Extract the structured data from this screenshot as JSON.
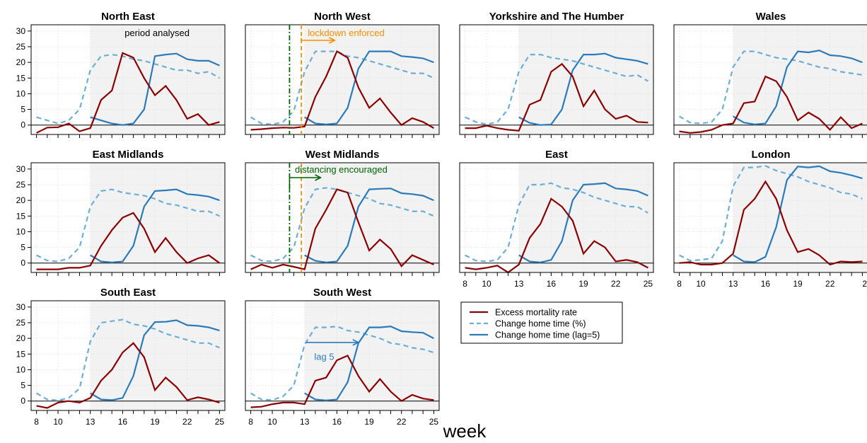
{
  "chart_data": {
    "type": "line",
    "xlabel": "week",
    "x": [
      8,
      9,
      10,
      11,
      12,
      13,
      14,
      15,
      16,
      17,
      18,
      19,
      20,
      21,
      22,
      23,
      24,
      25
    ],
    "x_ticks": [
      8,
      10,
      13,
      16,
      19,
      22,
      25
    ],
    "y_ticks": [
      0,
      5,
      10,
      15,
      20,
      25,
      30
    ],
    "ylim": [
      -3,
      32
    ],
    "xlim": [
      7.5,
      25.5
    ],
    "analysed_period": [
      13,
      25.5
    ],
    "lag_x": [
      13,
      14,
      15,
      16,
      17,
      18,
      19,
      20,
      21,
      22,
      23,
      24,
      25
    ],
    "colors": {
      "mortality": "#8b0000",
      "home": "#6baed6",
      "lag": "#2b7bba",
      "lockdown": "#ff8c00",
      "distancing": "#006400",
      "shade": "#f2f2f2"
    },
    "legend": {
      "items": [
        {
          "label": "Excess mortality rate",
          "key": "mortality",
          "dash": false
        },
        {
          "label": "Change home time (%)",
          "key": "home",
          "dash": true
        },
        {
          "label": "Change home time (lag=5)",
          "key": "lag",
          "dash": false
        }
      ]
    },
    "annotations": {
      "period": "period analysed",
      "lockdown": "lockdown enforced",
      "distancing": "distancing encouraged",
      "lag": "lag 5",
      "lockdown_week": 12.7,
      "distancing_week": 11.6
    },
    "panels": [
      {
        "title": "North East",
        "mortality": [
          -2.5,
          -0.8,
          -0.7,
          0.5,
          -2,
          -1,
          8,
          11,
          23,
          21.5,
          15,
          9.5,
          12.5,
          8,
          2,
          3.5,
          0,
          1
        ],
        "home": [
          2.5,
          1.5,
          0.5,
          1.5,
          5,
          17.5,
          22,
          22.5,
          22,
          21,
          20.5,
          19.5,
          18.5,
          17.5,
          17.5,
          16.5,
          17,
          15
        ],
        "lag": [
          2.5,
          1.5,
          0.5,
          0,
          0.5,
          5,
          22,
          22.5,
          22.8,
          21,
          20.5,
          20.5,
          19
        ]
      },
      {
        "title": "North West",
        "mortality": [
          -1.5,
          -1.3,
          -1,
          -0.8,
          -0.9,
          -0.5,
          9,
          15.5,
          23.5,
          21.5,
          12,
          5.5,
          8.5,
          4,
          0,
          2.2,
          1,
          -1
        ],
        "home": [
          2.5,
          0.5,
          0.2,
          1,
          4.5,
          17,
          23.5,
          23.5,
          23.5,
          22,
          21.5,
          20.5,
          19.5,
          18.5,
          17.5,
          16.5,
          16.5,
          15
        ],
        "lag": [
          2.5,
          0.5,
          0.2,
          0.5,
          5.5,
          18,
          23.5,
          23.5,
          23.5,
          22,
          21.7,
          21.3,
          20
        ]
      },
      {
        "title": "Yorkshire and The Humber",
        "mortality": [
          -1,
          -1,
          -0.2,
          -1,
          -1.5,
          -1.8,
          6.5,
          8,
          17,
          19.5,
          15.5,
          6,
          11,
          5,
          2,
          3,
          1,
          0.8
        ],
        "home": [
          2.5,
          1,
          0.2,
          1,
          5,
          17,
          22.5,
          22.5,
          21.5,
          21,
          20.5,
          19.5,
          18.5,
          17.5,
          16.5,
          15.5,
          16,
          14
        ],
        "lag": [
          2.5,
          0.7,
          0,
          0.2,
          5,
          17.5,
          22.5,
          22.5,
          22.8,
          21.5,
          21,
          20.5,
          19.5
        ]
      },
      {
        "title": "Wales",
        "mortality": [
          -2,
          -2.5,
          -2.2,
          -1.5,
          0,
          0.5,
          7,
          7.5,
          15.5,
          14,
          9,
          1.5,
          4,
          2,
          -1.5,
          2.5,
          -1,
          0.5
        ],
        "home": [
          2.8,
          0.8,
          0.5,
          1,
          5,
          18.5,
          23.5,
          23.5,
          22.5,
          21.5,
          21,
          20.5,
          19.5,
          18.5,
          18,
          17,
          16.5,
          16
        ],
        "lag": [
          2.8,
          0.8,
          0.2,
          0.5,
          6,
          18.5,
          23.5,
          23.2,
          23.8,
          22.3,
          22,
          21.3,
          20
        ]
      },
      {
        "title": "East Midlands",
        "mortality": [
          -2,
          -2,
          -2,
          -1.5,
          -1.5,
          -0.8,
          5.5,
          10.5,
          14.5,
          16,
          11,
          3.5,
          8,
          3.5,
          0,
          1.5,
          2.5,
          0
        ],
        "home": [
          2.5,
          0.8,
          0.5,
          1.5,
          5,
          18,
          23,
          23.5,
          22.5,
          22,
          21.5,
          20.5,
          19,
          18.5,
          17.5,
          16.5,
          16.5,
          15
        ],
        "lag": [
          2.5,
          0.5,
          0.2,
          0.5,
          5.5,
          18,
          23,
          23.2,
          23.5,
          22,
          21.7,
          21.2,
          20
        ]
      },
      {
        "title": "West Midlands",
        "mortality": [
          -2,
          -0.5,
          -1.5,
          -0.5,
          -1.2,
          -2,
          11,
          17,
          23.5,
          22.5,
          13,
          4,
          7.5,
          4.5,
          -1,
          2.5,
          1,
          -0.5
        ],
        "home": [
          2.5,
          0.8,
          0.5,
          1.5,
          5,
          17.5,
          23.5,
          24,
          23.5,
          22.5,
          21.5,
          20.5,
          19,
          18.5,
          17.5,
          16.5,
          16.5,
          15
        ],
        "lag": [
          2.5,
          0.7,
          0.2,
          0.5,
          5.5,
          18,
          23.5,
          23.7,
          23.8,
          22.3,
          22,
          21.5,
          20
        ]
      },
      {
        "title": "East",
        "mortality": [
          -1.5,
          -2,
          -1.5,
          -0.8,
          -3,
          -0.5,
          8,
          12.5,
          20.5,
          18,
          13.5,
          3,
          7,
          5,
          0.5,
          1,
          0.3,
          -1.5
        ],
        "home": [
          2.5,
          0.8,
          0.5,
          1,
          5,
          18.5,
          25,
          25,
          25.5,
          24,
          23.5,
          22.5,
          21,
          20,
          19,
          18,
          18,
          16
        ],
        "lag": [
          2.5,
          0.5,
          0.2,
          1,
          7,
          20,
          25,
          25.2,
          25.5,
          23.8,
          23.5,
          23,
          21.5
        ]
      },
      {
        "title": "London",
        "mortality": [
          0,
          0.3,
          -0.5,
          -0.5,
          0,
          3,
          17,
          20.5,
          26,
          20.5,
          10.5,
          3.5,
          4.5,
          2.5,
          -0.5,
          0.5,
          0.3,
          0.5
        ],
        "home": [
          2.5,
          0.8,
          1,
          1.5,
          7,
          24.5,
          30.5,
          30.5,
          31,
          29.5,
          28.5,
          27.5,
          26,
          25,
          24,
          22.5,
          22,
          20.5
        ],
        "lag": [
          2.5,
          0.5,
          0.3,
          2,
          11.5,
          26.5,
          30.8,
          30.5,
          30.9,
          29.3,
          28.8,
          28,
          27
        ]
      },
      {
        "title": "South East",
        "mortality": [
          -1.5,
          -2.2,
          -0.5,
          0,
          -0.5,
          1,
          6.5,
          10,
          15.5,
          18.5,
          14,
          3.5,
          7.5,
          4.5,
          0.3,
          1.2,
          0.5,
          -0.5
        ],
        "home": [
          2.5,
          0.5,
          0.2,
          1,
          4,
          19,
          25,
          25.5,
          26,
          24.5,
          24,
          23,
          21.5,
          20.5,
          19.5,
          18.5,
          18.5,
          17
        ],
        "lag": [
          2.5,
          0.5,
          0.3,
          1,
          8,
          21,
          25.2,
          25.3,
          25.8,
          24.2,
          24,
          23.5,
          22.5
        ]
      },
      {
        "title": "South West",
        "mortality": [
          -2,
          -1.8,
          -1,
          -0.5,
          -0.5,
          -1,
          6.5,
          7.5,
          13,
          14.5,
          8,
          3,
          7,
          3,
          0,
          2,
          0.8,
          0.3
        ],
        "home": [
          2.5,
          0.5,
          0.3,
          1.5,
          5,
          18,
          23.5,
          23.5,
          23.8,
          22.5,
          22,
          21,
          20,
          18.5,
          18,
          17,
          16.5,
          15.5
        ],
        "lag": [
          2.5,
          0.5,
          0.2,
          0.5,
          6,
          18.5,
          23.5,
          23.5,
          23.8,
          22.3,
          22,
          21.8,
          20
        ]
      }
    ]
  }
}
